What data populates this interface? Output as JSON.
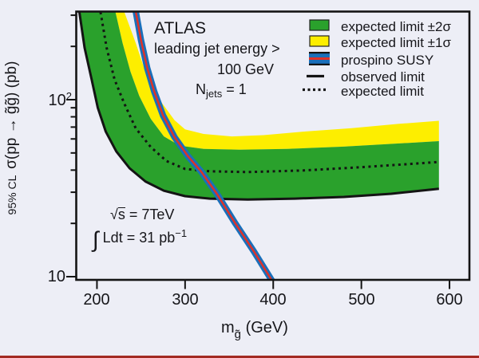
{
  "figure": {
    "background": "#edeef6",
    "bottom_bar_color": "#a22a22"
  },
  "annotations": {
    "atlas": "ATLAS",
    "jet_cut_line1": "leading jet energy >",
    "jet_cut_line2": "100 GeV",
    "njets": {
      "base": "N",
      "sub": "jets",
      "rest": " = 1"
    },
    "sqrt_s": {
      "root": "√",
      "s": "s",
      "rest": " = 7TeV"
    },
    "lumi": {
      "integral": "∫",
      "main": " Ldt = 31 pb",
      "sup": "−1"
    }
  },
  "legend": {
    "items": [
      {
        "label": "expected limit ±2σ",
        "swatch": "green-box"
      },
      {
        "label": "expected limit ±1σ",
        "swatch": "yellow-box"
      },
      {
        "label": "prospino SUSY",
        "swatch": "blue-red-band"
      },
      {
        "label": "observed limit",
        "swatch": "solid-line"
      },
      {
        "label": "expected limit",
        "swatch": "dotted-line"
      }
    ]
  },
  "axes": {
    "x": {
      "title": {
        "base": "m",
        "sub": "g̃",
        "rest": " (GeV)"
      },
      "tick_labels": [
        "200",
        "300",
        "400",
        "500",
        "600"
      ]
    },
    "y": {
      "title_prefix": "95% CL",
      "title_main": "σ(pp → g̃g̃) (pb)",
      "tick_low": "10",
      "tick_high_base": "10",
      "tick_high_exp": "2"
    }
  },
  "chart_data": {
    "type": "line",
    "description": "95% CL upper limit on sigma(pp -> gluino gluino) in pb versus gluino mass in GeV, ATLAS monojet search, sqrt(s)=7 TeV, 31 pb^-1",
    "xlabel": "m_gluino (GeV)",
    "ylabel": "95% CL sigma(pp -> gg) (pb)",
    "x_scale": "linear",
    "y_scale": "log",
    "x_range": [
      176.5,
      622.6
    ],
    "y_log_range": [
      0.982,
      2.5
    ],
    "x_ticks": [
      200,
      300,
      400,
      500,
      600
    ],
    "y_ticks": [
      10,
      100
    ],
    "y_minor_ticks": [
      20,
      30,
      40,
      50,
      60,
      70,
      80,
      90,
      200,
      300
    ],
    "colors": {
      "green_band": "#2aa12c",
      "yellow_band": "#fdee00",
      "prospino_blue": "#1a6fba",
      "prospino_red": "#e03127",
      "line_black": "#141414"
    },
    "series": {
      "observed": {
        "name": "observed limit",
        "style": "solid black",
        "points": [
          [
            180,
            313
          ],
          [
            186,
            196
          ],
          [
            194,
            130
          ],
          [
            201,
            90
          ],
          [
            210,
            66
          ],
          [
            222,
            51
          ],
          [
            237,
            41
          ],
          [
            255,
            34.5
          ],
          [
            276,
            30.6
          ],
          [
            300,
            28.5
          ],
          [
            328,
            27.6
          ],
          [
            371,
            27.3
          ],
          [
            425,
            27.6
          ],
          [
            480,
            28.2
          ],
          [
            534,
            29.4
          ],
          [
            588,
            31.4
          ]
        ]
      },
      "expected": {
        "name": "expected limit",
        "style": "dotted black",
        "points": [
          [
            204,
            313
          ],
          [
            211,
            196
          ],
          [
            220,
            130
          ],
          [
            231,
            95
          ],
          [
            244,
            69
          ],
          [
            261,
            54
          ],
          [
            279,
            45
          ],
          [
            300,
            40.6
          ],
          [
            328,
            39.4
          ],
          [
            371,
            39
          ],
          [
            434,
            39.8
          ],
          [
            498,
            41.5
          ],
          [
            552,
            43.2
          ],
          [
            588,
            44.5
          ]
        ]
      },
      "band_1sigma_top": {
        "name": "expected limit +1 sigma (yellow band upper edge)",
        "points": [
          [
            231,
            313
          ],
          [
            244,
            209
          ],
          [
            257,
            134
          ],
          [
            271,
            100
          ],
          [
            288,
            76.5
          ],
          [
            300,
            68
          ],
          [
            321,
            64
          ],
          [
            353,
            62
          ],
          [
            389,
            63
          ],
          [
            434,
            66
          ],
          [
            489,
            69
          ],
          [
            543,
            73
          ],
          [
            588,
            76
          ]
        ]
      },
      "band_boundary": {
        "name": "yellow/green band boundary",
        "points": [
          [
            221,
            313
          ],
          [
            229,
            209
          ],
          [
            238,
            144
          ],
          [
            248,
            105
          ],
          [
            261,
            78
          ],
          [
            276,
            62
          ],
          [
            294,
            55
          ],
          [
            321,
            52.7
          ],
          [
            362,
            52.2
          ],
          [
            416,
            52.7
          ],
          [
            480,
            54.3
          ],
          [
            543,
            56.6
          ],
          [
            588,
            58.3
          ]
        ]
      },
      "prospino": {
        "name": "prospino SUSY",
        "style": "blue with red centerline",
        "points": [
          [
            244,
            316
          ],
          [
            250,
            217
          ],
          [
            257,
            151
          ],
          [
            265,
            111
          ],
          [
            275,
            81.5
          ],
          [
            288,
            61.4
          ],
          [
            303,
            48.1
          ],
          [
            318,
            39.4
          ],
          [
            336,
            29.4
          ],
          [
            357,
            20
          ],
          [
            378,
            13.9
          ],
          [
            398,
            9.6
          ],
          [
            400,
            9.3
          ]
        ]
      }
    }
  }
}
